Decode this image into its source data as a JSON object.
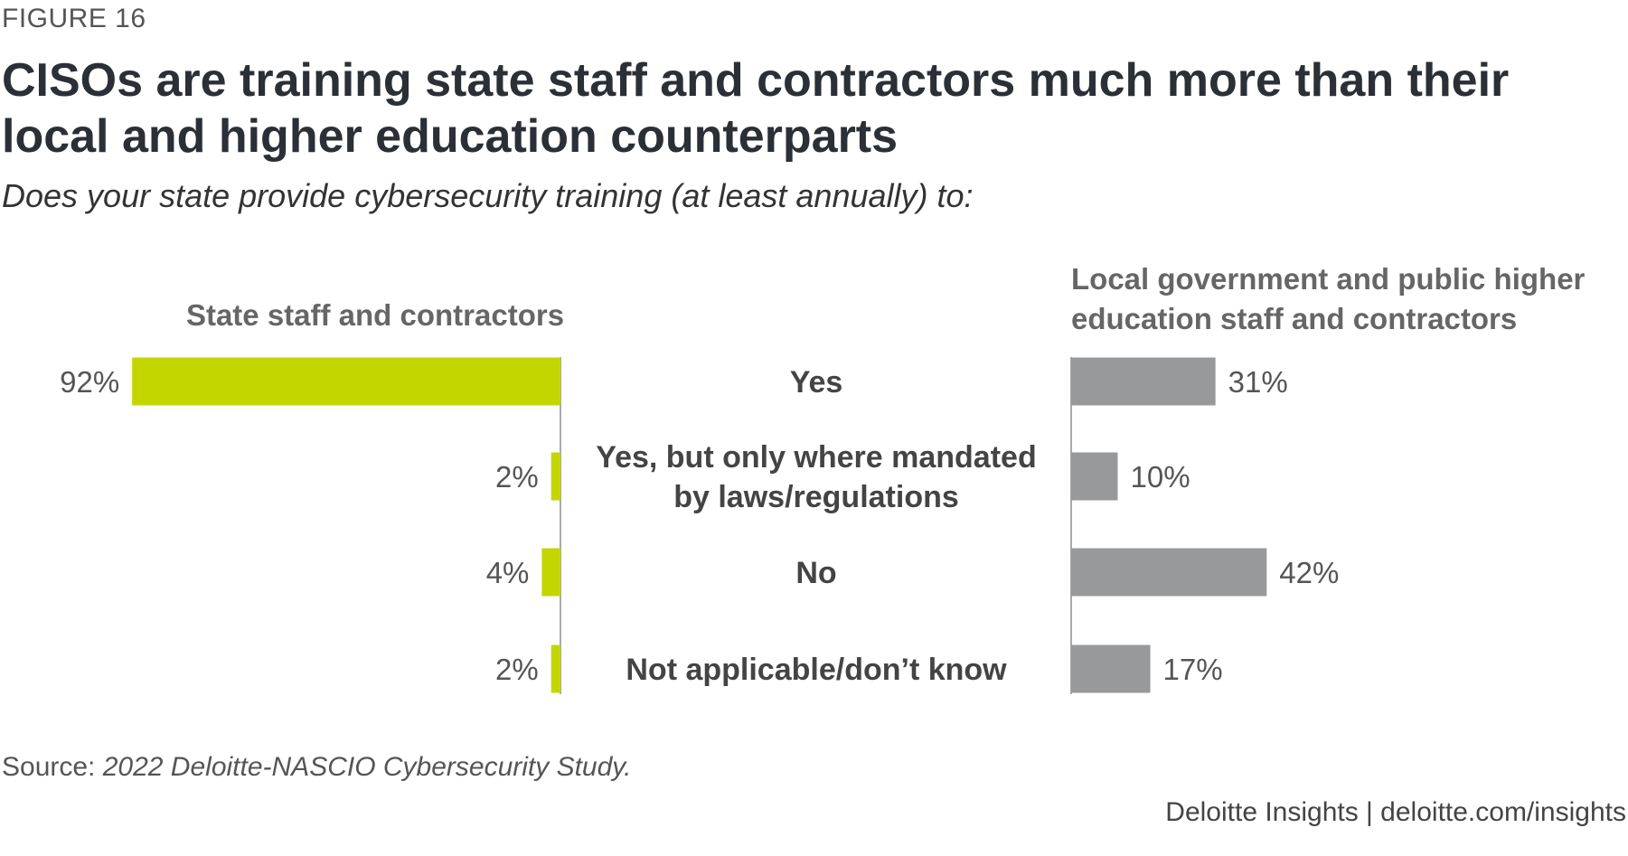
{
  "figure_label": "FIGURE 16",
  "title": "CISOs are training state staff and contractors much more than their local and higher education counterparts",
  "subtitle": "Does your state provide cybersecurity training (at least annually) to:",
  "source_prefix": "Source: ",
  "source_text": "2022 Deloitte-NASCIO Cybersecurity Study.",
  "brand": "Deloitte Insights | deloitte.com/insights",
  "chart_data": {
    "type": "bar",
    "orientation": "horizontal",
    "categories": [
      [
        "Yes"
      ],
      [
        "Yes, but only where mandated",
        "by laws/regulations"
      ],
      [
        "No"
      ],
      [
        "Not applicable/don’t know"
      ]
    ],
    "series": [
      {
        "name": "State staff and contractors",
        "values": [
          92,
          2,
          4,
          2
        ],
        "labels": [
          "92%",
          "2%",
          "4%",
          "2%"
        ],
        "color": "#c4d600"
      },
      {
        "name": "Local government and public higher education staff and contractors",
        "name_lines": [
          "Local government and public higher",
          "education staff and contractors"
        ],
        "values": [
          31,
          10,
          42,
          17
        ],
        "labels": [
          "31%",
          "10%",
          "42%",
          "17%"
        ],
        "color": "#97999b"
      }
    ],
    "unit": "%",
    "grid": false
  }
}
